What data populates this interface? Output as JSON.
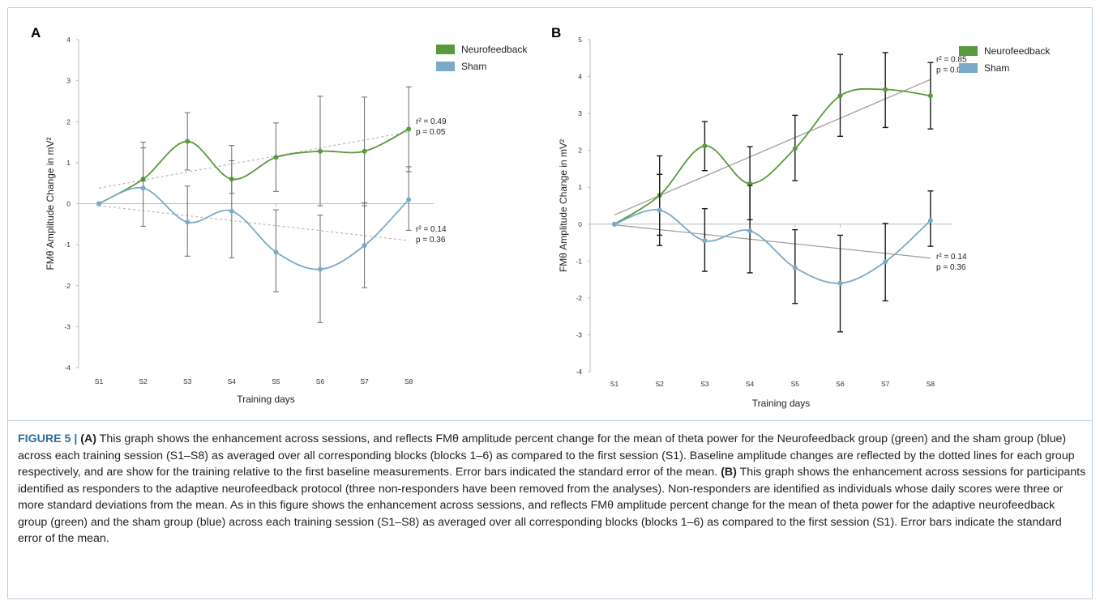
{
  "colors": {
    "neuro": "#5a9a3c",
    "sham": "#7aaac7",
    "frame": "#b8cde0",
    "figure_label": "#2f6f9f"
  },
  "caption": {
    "figure_label": "FIGURE 5 | ",
    "a_label": "(A)",
    "a_text": " This graph shows the enhancement across sessions, and reflects FMθ amplitude percent change for the mean of theta power for the Neurofeedback group (green) and the sham group (blue) across each training session (S1–S8) as averaged over all corresponding blocks (blocks 1–6) as compared to the first session (S1). Baseline amplitude changes are reflected by the dotted lines for each group respectively, and are show for the training relative to the first baseline measurements. Error bars indicated the standard error of the mean. ",
    "b_label": "(B)",
    "b_text": " This graph shows the enhancement across sessions for participants identified as responders to the adaptive neurofeedback protocol (three non-responders have been removed from the analyses). Non-responders are identified as individuals whose daily scores were three or more standard deviations from the mean. As in this figure shows the enhancement across sessions, and reflects FMθ amplitude percent change for the mean of theta power for the adaptive neurofeedback group (green) and the sham group (blue) across each training session (S1–S8) as averaged over all corresponding blocks (blocks 1–6) as compared to the first session (S1). Error bars indicate the standard error of the mean."
  },
  "chart_data": [
    {
      "panel": "A",
      "type": "line",
      "x": [
        "S1",
        "S2",
        "S3",
        "S4",
        "S5",
        "S6",
        "S7",
        "S8"
      ],
      "xlabel": "Training days",
      "ylabel": "FMθ  Amplitude Change in mV²",
      "ylim": [
        -4,
        4
      ],
      "yticks": [
        4,
        3,
        2,
        1,
        0,
        -1,
        -2,
        -3,
        -4
      ],
      "trend_style": "dotted",
      "legend_position": "top-right",
      "series": [
        {
          "name": "Neurofeedback",
          "values": [
            0,
            0.6,
            1.52,
            0.6,
            1.13,
            1.28,
            1.28,
            1.82
          ],
          "err_low": [
            0,
            0.55,
            0.82,
            0.25,
            0.3,
            -0.05,
            -0.05,
            0.78
          ],
          "err_high": [
            0,
            1.5,
            2.22,
            1.42,
            1.97,
            2.62,
            2.6,
            2.85
          ],
          "trend": [
            0.38,
            1.75
          ],
          "r2_label": "r² = 0.49",
          "p_label": "p = 0.05"
        },
        {
          "name": "Sham",
          "values": [
            0,
            0.38,
            -0.45,
            -0.18,
            -1.18,
            -1.6,
            -1.02,
            0.1
          ],
          "err_low": [
            0,
            -0.55,
            -1.28,
            -1.32,
            -2.15,
            -2.9,
            -2.05,
            -0.65
          ],
          "err_high": [
            0,
            1.36,
            0.43,
            1.05,
            -0.15,
            -0.28,
            0.02,
            0.9
          ],
          "trend": [
            -0.05,
            -0.9
          ],
          "r2_label": "r² = 0.14",
          "p_label": "p = 0.36"
        }
      ]
    },
    {
      "panel": "B",
      "type": "line",
      "x": [
        "S1",
        "S2",
        "S3",
        "S4",
        "S5",
        "S6",
        "S7",
        "S8"
      ],
      "xlabel": "Training days",
      "ylabel": "FMθ  Amplitude Change in mV²",
      "ylim": [
        -4,
        5
      ],
      "yticks": [
        5,
        4,
        3,
        2,
        1,
        0,
        -1,
        -2,
        -3,
        -4
      ],
      "trend_style": "solid",
      "legend_position": "top-right",
      "series": [
        {
          "name": "Neurofeedback",
          "values": [
            0,
            0.78,
            2.12,
            1.1,
            2.05,
            3.48,
            3.65,
            3.48
          ],
          "err_low": [
            0,
            -0.3,
            1.45,
            0.12,
            1.18,
            2.38,
            2.62,
            2.58
          ],
          "err_high": [
            0,
            1.85,
            2.78,
            2.1,
            2.95,
            4.6,
            4.65,
            4.38
          ],
          "trend": [
            0.25,
            3.92
          ],
          "r2_label": "r² = 0.85",
          "p_label": "p = 0.001"
        },
        {
          "name": "Sham",
          "values": [
            0,
            0.38,
            -0.45,
            -0.18,
            -1.18,
            -1.6,
            -1.02,
            0.1
          ],
          "err_low": [
            0,
            -0.58,
            -1.28,
            -1.32,
            -2.15,
            -2.92,
            -2.08,
            -0.6
          ],
          "err_high": [
            0,
            1.35,
            0.42,
            1.05,
            -0.15,
            -0.3,
            0.02,
            0.9
          ],
          "trend": [
            -0.02,
            -0.92
          ],
          "r2_label": "r² = 0.14",
          "p_label": "p = 0.36"
        }
      ]
    }
  ]
}
